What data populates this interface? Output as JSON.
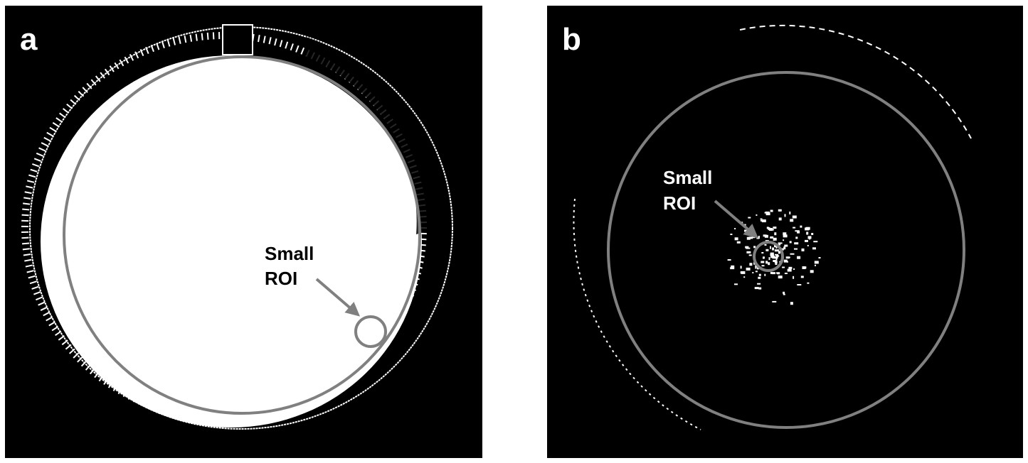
{
  "panels": [
    {
      "label": "a",
      "annotation": [
        "Small",
        "ROI"
      ]
    },
    {
      "label": "b",
      "annotation": [
        "Small",
        "ROI"
      ]
    }
  ]
}
